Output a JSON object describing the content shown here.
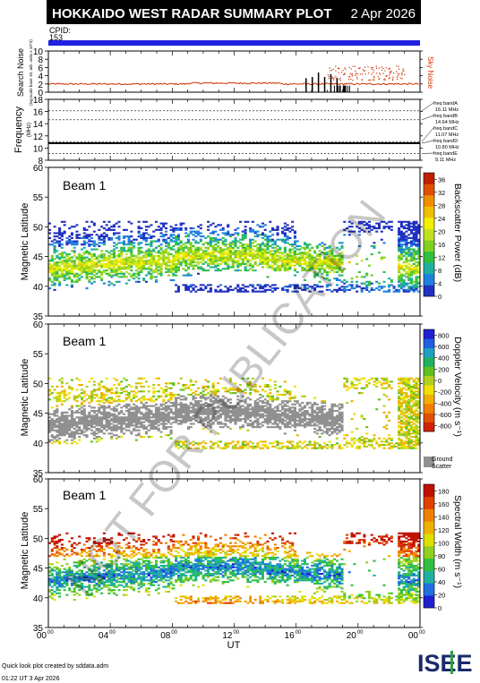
{
  "header": {
    "title": "HOKKAIDO WEST RADAR SUMMARY PLOT",
    "date": "2 Apr 2026",
    "cpid_label": "CPID:",
    "cpid_value": "153"
  },
  "colors": {
    "header_bg": "#000000",
    "cpid_bar": "#2020e0",
    "noise": "#d03000",
    "ground_scatter": "#909090"
  },
  "footer": {
    "credit": "Quick look plot created by sddata.adm",
    "timestamp": "01:22 UT  3 Apr 2026",
    "logo_text": "ISEE"
  },
  "watermark": "NOT FOR PUBLICATION",
  "chart_data": [
    {
      "type": "line",
      "ylabel": "Search Noise",
      "ylabel_sub": "(log-scale base 10, arb. units x 10^3)",
      "side_label": "Sky Noise",
      "ylim": [
        0,
        10
      ],
      "yticks": [
        "0",
        "2",
        "4",
        "6",
        "8",
        "10"
      ],
      "baseline_level": 2,
      "spikes_after_hours": [
        16.6,
        17.0,
        17.4,
        17.8,
        18.2,
        18.6
      ],
      "scattered_points_hours": [
        18.0,
        23.0
      ]
    },
    {
      "type": "line",
      "ylabel": "Frequency",
      "ylabel_sub": "(MHz)",
      "ylim": [
        8,
        18
      ],
      "yticks": [
        "8",
        "10",
        "12",
        "14",
        "16",
        "18"
      ],
      "series": [
        {
          "name": "freq bandA",
          "value_label": "16.11 MHz",
          "value": 16.11
        },
        {
          "name": "freq bandB",
          "value_label": "14.64 MHz",
          "value": 14.64
        },
        {
          "name": "freq bandC",
          "value_label": "11.07 MHz",
          "value": 11.07
        },
        {
          "name": "freq bandD",
          "value_label": "10.80 MHz",
          "value": 10.8
        },
        {
          "name": "freq bandE",
          "value_label": "9.11 MHz",
          "value": 9.11
        }
      ],
      "operating_frequency": 10.8
    },
    {
      "type": "heatmap",
      "panel_label": "Beam  1",
      "ylabel": "Magnetic Latitude",
      "ylim": [
        35,
        60
      ],
      "yticks": [
        "35",
        "40",
        "45",
        "50",
        "55",
        "60"
      ],
      "data_lat_range": [
        39,
        51
      ],
      "colorbar": {
        "label": "Backscatter Power (dB)",
        "ticks": [
          "0",
          "4",
          "8",
          "12",
          "16",
          "20",
          "24",
          "28",
          "32",
          "36"
        ],
        "colors": [
          "#2030c0",
          "#2080e0",
          "#20b0a0",
          "#30c040",
          "#80d020",
          "#c0e020",
          "#f0f000",
          "#f0c000",
          "#f09000",
          "#e05000",
          "#c02000"
        ]
      }
    },
    {
      "type": "heatmap",
      "panel_label": "Beam  1",
      "ylabel": "Magnetic Latitude",
      "ylim": [
        35,
        60
      ],
      "yticks": [
        "35",
        "40",
        "45",
        "50",
        "55",
        "60"
      ],
      "data_lat_range": [
        39,
        51
      ],
      "colorbar": {
        "label": "Doppler Velocity (m s⁻¹)",
        "ticks": [
          "800",
          "600",
          "400",
          "200",
          "0",
          "-200",
          "-400",
          "-600",
          "-800"
        ],
        "colors": [
          "#2020d0",
          "#2060e0",
          "#20a0c0",
          "#20b060",
          "#60c020",
          "#b0d020",
          "#f0e000",
          "#f0b000",
          "#f08000",
          "#e05000",
          "#d02000"
        ],
        "ground_scatter_label": [
          "Ground",
          "Scatter"
        ]
      }
    },
    {
      "type": "heatmap",
      "panel_label": "Beam  1",
      "ylabel": "Magnetic Latitude",
      "ylim": [
        35,
        60
      ],
      "yticks": [
        "35",
        "40",
        "45",
        "50",
        "55",
        "60"
      ],
      "data_lat_range": [
        39,
        51
      ],
      "colorbar": {
        "label": "Spectral Width (m s⁻¹)",
        "ticks": [
          "0",
          "20",
          "40",
          "60",
          "80",
          "100",
          "120",
          "140",
          "160",
          "180"
        ],
        "colors": [
          "#2020d0",
          "#2070e0",
          "#20b0a0",
          "#30c040",
          "#90d020",
          "#e0e000",
          "#f0b000",
          "#f08000",
          "#e04000",
          "#c01000"
        ]
      }
    }
  ],
  "x_axis": {
    "label": "UT",
    "range_hours": [
      0,
      24
    ],
    "ticks": [
      {
        "h": "00",
        "m": "00"
      },
      {
        "h": "04",
        "m": "00"
      },
      {
        "h": "08",
        "m": "00"
      },
      {
        "h": "12",
        "m": "00"
      },
      {
        "h": "16",
        "m": "00"
      },
      {
        "h": "20",
        "m": "00"
      },
      {
        "h": "00",
        "m": "00"
      }
    ]
  }
}
